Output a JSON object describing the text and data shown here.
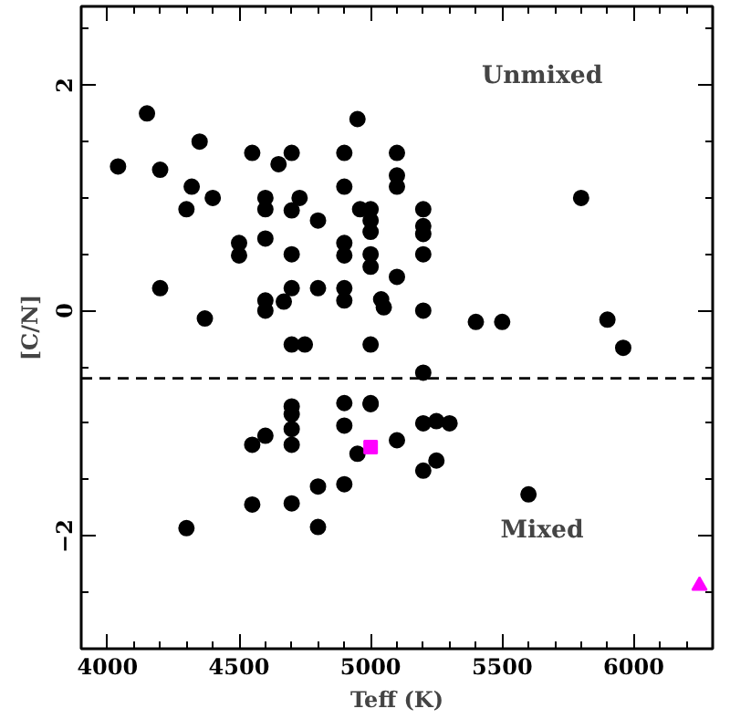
{
  "chart_data": {
    "type": "scatter",
    "xlabel": "Teff (K)",
    "ylabel": "[C/N]",
    "xlim": [
      3900,
      6300
    ],
    "xticks": [
      4000,
      4500,
      5000,
      5500,
      6000
    ],
    "ylim": [
      -3,
      2.7
    ],
    "yticks": [
      -2,
      0,
      2
    ],
    "grid": false,
    "annotations": [
      "Unmixed",
      "Mixed"
    ],
    "ref_lines": [
      {
        "axis": "y",
        "value": -0.6,
        "line_style": "dashed",
        "color": "#000000"
      }
    ],
    "series": [
      {
        "color": "#000000",
        "marker": "circle",
        "x": [
          4040,
          4150,
          4200,
          4350,
          4320,
          4300,
          4400,
          4550,
          4650,
          4700,
          4600,
          4600,
          4730,
          4700,
          4800,
          4900,
          4900,
          4950,
          4960,
          5000,
          5000,
          5000,
          5100,
          5100,
          5100,
          4500,
          4500,
          4600,
          4700,
          4900,
          4900,
          5000,
          5000,
          5100,
          4200,
          4370,
          4600,
          4600,
          4670,
          4700,
          4800,
          4900,
          4900,
          5040,
          5050,
          4700,
          4750,
          5000,
          5200,
          5200,
          5200,
          5200,
          5200,
          5400,
          5500,
          5800,
          5900,
          5960,
          5200,
          5000,
          5200,
          5250,
          5300,
          5100,
          5200,
          5250,
          5600,
          4900,
          5000,
          4700,
          4700,
          4700,
          4700,
          4900,
          4550,
          4600,
          4950,
          4800,
          4900,
          4550,
          4700,
          4300,
          4800
        ],
        "values": [
          1.28,
          1.75,
          1.25,
          1.5,
          1.1,
          0.9,
          1.0,
          1.4,
          1.3,
          1.4,
          1.0,
          0.9,
          1.0,
          0.89,
          0.8,
          1.4,
          1.1,
          1.7,
          0.9,
          0.9,
          0.8,
          0.7,
          1.4,
          1.2,
          1.1,
          0.6,
          0.49,
          0.64,
          0.5,
          0.6,
          0.49,
          0.5,
          0.39,
          0.3,
          0.2,
          -0.07,
          0.09,
          0.0,
          0.08,
          0.2,
          0.2,
          0.2,
          0.09,
          0.1,
          0.03,
          -0.3,
          -0.3,
          -0.3,
          0.9,
          0.75,
          0.68,
          0.5,
          0.0,
          -0.1,
          -0.1,
          1.0,
          -0.08,
          -0.33,
          -0.55,
          -0.83,
          -1.0,
          -0.98,
          -1.0,
          -1.15,
          -1.42,
          -1.33,
          -1.63,
          -0.82,
          -0.82,
          -0.85,
          -0.92,
          -1.05,
          -1.19,
          -1.02,
          -1.19,
          -1.11,
          -1.27,
          -1.56,
          -1.54,
          -1.72,
          -1.71,
          -1.93,
          -1.92
        ]
      },
      {
        "color": "#ff00ff",
        "marker": "square",
        "x": [
          5000
        ],
        "values": [
          -1.21
        ]
      },
      {
        "color": "#ff00ff",
        "marker": "triangle",
        "x": [
          6250
        ],
        "values": [
          -2.44
        ]
      }
    ]
  }
}
